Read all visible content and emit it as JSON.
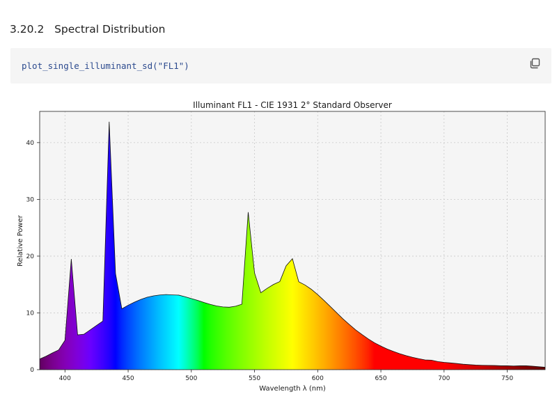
{
  "section": {
    "number": "3.20.2",
    "title": "Spectral Distribution"
  },
  "code": {
    "line": "plot_single_illuminant_sd(\"FL1\")",
    "copy_icon": "copy-icon"
  },
  "colors": {
    "code_bg": "#f5f5f5",
    "code_text": "#2c4a8e",
    "plot_bg": "#f5f5f5",
    "grid": "#c8c8c8"
  },
  "chart_data": {
    "type": "area",
    "title": "Illuminant FL1 - CIE 1931 2$^\\circ$ Standard Observer",
    "title_display": "Illuminant FL1 - CIE 1931 2° Standard Observer",
    "xlabel": "Wavelength λ (nm)",
    "ylabel": "Relative Power",
    "xlim": [
      380,
      780
    ],
    "ylim": [
      0,
      45.5
    ],
    "xticks": [
      400,
      450,
      500,
      550,
      600,
      650,
      700,
      750
    ],
    "yticks": [
      0,
      10,
      20,
      30,
      40
    ],
    "grid": true,
    "fill": "spectrum-colored",
    "x": [
      380,
      385,
      390,
      395,
      400,
      405,
      410,
      415,
      420,
      425,
      430,
      435,
      440,
      445,
      450,
      455,
      460,
      465,
      470,
      475,
      480,
      485,
      490,
      495,
      500,
      505,
      510,
      515,
      520,
      525,
      530,
      535,
      540,
      545,
      550,
      555,
      560,
      565,
      570,
      575,
      580,
      585,
      590,
      595,
      600,
      605,
      610,
      615,
      620,
      625,
      630,
      635,
      640,
      645,
      650,
      655,
      660,
      665,
      670,
      675,
      680,
      685,
      690,
      695,
      700,
      705,
      710,
      715,
      720,
      725,
      730,
      735,
      740,
      745,
      750,
      755,
      760,
      765,
      770,
      775,
      780
    ],
    "values": [
      1.87,
      2.36,
      2.94,
      3.47,
      5.17,
      19.49,
      6.13,
      6.24,
      7.01,
      7.79,
      8.56,
      43.67,
      16.94,
      10.72,
      11.35,
      11.89,
      12.37,
      12.75,
      13.0,
      13.15,
      13.23,
      13.17,
      13.13,
      12.85,
      12.52,
      12.2,
      11.83,
      11.5,
      11.22,
      11.05,
      11.0,
      11.18,
      11.53,
      27.74,
      17.05,
      13.55,
      14.33,
      15.01,
      15.52,
      18.29,
      19.55,
      15.48,
      14.91,
      14.15,
      13.22,
      12.19,
      11.12,
      10.03,
      8.95,
      7.96,
      7.02,
      6.2,
      5.42,
      4.73,
      4.15,
      3.64,
      3.2,
      2.81,
      2.47,
      2.18,
      1.93,
      1.72,
      1.67,
      1.43,
      1.29,
      1.19,
      1.08,
      0.96,
      0.88,
      0.81,
      0.77,
      0.75,
      0.73,
      0.68,
      0.69,
      0.64,
      0.68,
      0.69,
      0.61,
      0.52,
      0.43
    ]
  }
}
